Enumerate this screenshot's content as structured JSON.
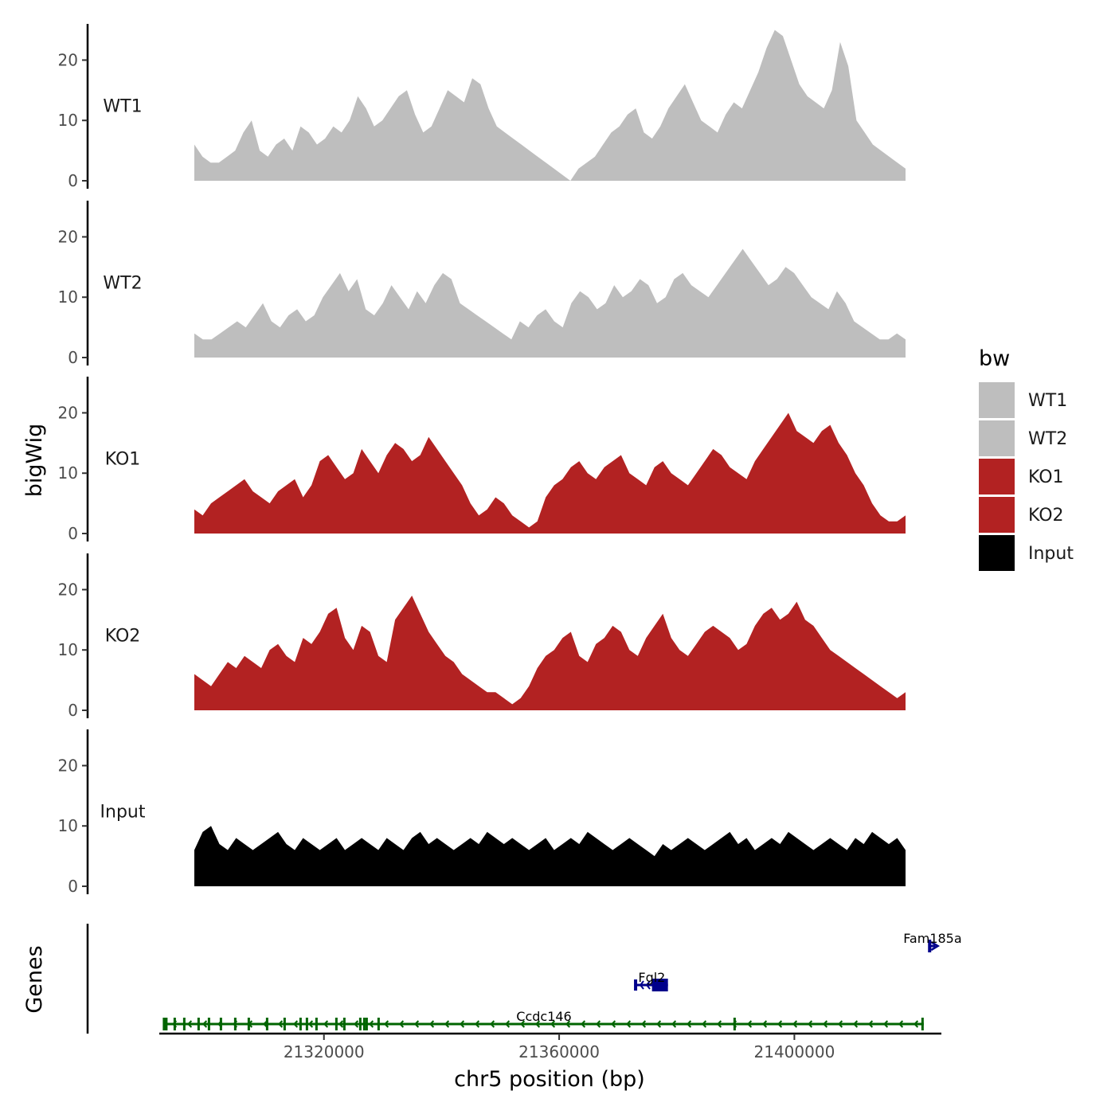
{
  "chart_data": {
    "type": "area",
    "title": "",
    "ylabel": "bigWig",
    "xlabel": "chr5 position (bp)",
    "xlim": [
      21292000,
      21425000
    ],
    "ylim": [
      0,
      26
    ],
    "y_ticks": [
      0,
      10,
      20
    ],
    "x_ticks": [
      21320000,
      21360000,
      21400000
    ],
    "x_tick_labels": [
      "21320000",
      "21360000",
      "21400000"
    ],
    "legend": {
      "title": "bw",
      "position": "right",
      "entries": [
        {
          "label": "WT1",
          "color": "#bebebe"
        },
        {
          "label": "WT2",
          "color": "#bebebe"
        },
        {
          "label": "KO1",
          "color": "#b22222"
        },
        {
          "label": "KO2",
          "color": "#b22222"
        },
        {
          "label": "Input",
          "color": "#000000"
        }
      ]
    },
    "series": [
      {
        "name": "WT1",
        "color": "#bebebe",
        "values": [
          6,
          4,
          3,
          3,
          4,
          5,
          8,
          10,
          5,
          4,
          6,
          7,
          5,
          9,
          8,
          6,
          7,
          9,
          8,
          10,
          14,
          12,
          9,
          10,
          12,
          14,
          15,
          11,
          8,
          9,
          12,
          15,
          14,
          13,
          17,
          16,
          12,
          9,
          8,
          7,
          6,
          5,
          4,
          3,
          2,
          1,
          0,
          2,
          3,
          4,
          6,
          8,
          9,
          11,
          12,
          8,
          7,
          9,
          12,
          14,
          16,
          13,
          10,
          9,
          8,
          11,
          13,
          12,
          15,
          18,
          22,
          25,
          24,
          20,
          16,
          14,
          13,
          12,
          15,
          23,
          19,
          10,
          8,
          6,
          5,
          4,
          3,
          2
        ]
      },
      {
        "name": "WT2",
        "color": "#bebebe",
        "values": [
          4,
          3,
          3,
          4,
          5,
          6,
          5,
          7,
          9,
          6,
          5,
          7,
          8,
          6,
          7,
          10,
          12,
          14,
          11,
          13,
          8,
          7,
          9,
          12,
          10,
          8,
          11,
          9,
          12,
          14,
          13,
          9,
          8,
          7,
          6,
          5,
          4,
          3,
          6,
          5,
          7,
          8,
          6,
          5,
          9,
          11,
          10,
          8,
          9,
          12,
          10,
          11,
          13,
          12,
          9,
          10,
          13,
          14,
          12,
          11,
          10,
          12,
          14,
          16,
          18,
          16,
          14,
          12,
          13,
          15,
          14,
          12,
          10,
          9,
          8,
          11,
          9,
          6,
          5,
          4,
          3,
          3,
          4,
          3
        ]
      },
      {
        "name": "KO1",
        "color": "#b22222",
        "values": [
          4,
          3,
          5,
          6,
          7,
          8,
          9,
          7,
          6,
          5,
          7,
          8,
          9,
          6,
          8,
          12,
          13,
          11,
          9,
          10,
          14,
          12,
          10,
          13,
          15,
          14,
          12,
          13,
          16,
          14,
          12,
          10,
          8,
          5,
          3,
          4,
          6,
          5,
          3,
          2,
          1,
          2,
          6,
          8,
          9,
          11,
          12,
          10,
          9,
          11,
          12,
          13,
          10,
          9,
          8,
          11,
          12,
          10,
          9,
          8,
          10,
          12,
          14,
          13,
          11,
          10,
          9,
          12,
          14,
          16,
          18,
          20,
          17,
          16,
          15,
          17,
          18,
          15,
          13,
          10,
          8,
          5,
          3,
          2,
          2,
          3
        ]
      },
      {
        "name": "KO2",
        "color": "#b22222",
        "values": [
          6,
          5,
          4,
          6,
          8,
          7,
          9,
          8,
          7,
          10,
          11,
          9,
          8,
          12,
          11,
          13,
          16,
          17,
          12,
          10,
          14,
          13,
          9,
          8,
          15,
          17,
          19,
          16,
          13,
          11,
          9,
          8,
          6,
          5,
          4,
          3,
          3,
          2,
          1,
          2,
          4,
          7,
          9,
          10,
          12,
          13,
          9,
          8,
          11,
          12,
          14,
          13,
          10,
          9,
          12,
          14,
          16,
          12,
          10,
          9,
          11,
          13,
          14,
          13,
          12,
          10,
          11,
          14,
          16,
          17,
          15,
          16,
          18,
          15,
          14,
          12,
          10,
          9,
          8,
          7,
          6,
          5,
          4,
          3,
          2,
          3
        ]
      },
      {
        "name": "Input",
        "color": "#000000",
        "values": [
          6,
          9,
          10,
          7,
          6,
          8,
          7,
          6,
          7,
          8,
          9,
          7,
          6,
          8,
          7,
          6,
          7,
          8,
          6,
          7,
          8,
          7,
          6,
          8,
          7,
          6,
          8,
          9,
          7,
          8,
          7,
          6,
          7,
          8,
          7,
          9,
          8,
          7,
          8,
          7,
          6,
          7,
          8,
          6,
          7,
          8,
          7,
          9,
          8,
          7,
          6,
          7,
          8,
          7,
          6,
          5,
          7,
          6,
          7,
          8,
          7,
          6,
          7,
          8,
          9,
          7,
          8,
          6,
          7,
          8,
          7,
          9,
          8,
          7,
          6,
          7,
          8,
          7,
          6,
          8,
          7,
          9,
          8,
          7,
          8,
          6
        ]
      }
    ],
    "gene_track_label": "Genes",
    "genes": [
      {
        "name": "Fam185a",
        "start": 21423000,
        "end": 21424000,
        "strand": "+",
        "row": 3,
        "color": "#00008b"
      },
      {
        "name": "Fgl2",
        "start": 21373000,
        "end": 21378500,
        "strand": "-",
        "row": 2,
        "color": "#00008b"
      },
      {
        "name": "Ccdc146",
        "start": 21293000,
        "end": 21422000,
        "strand": "-",
        "row": 1,
        "color": "#006400"
      }
    ]
  }
}
